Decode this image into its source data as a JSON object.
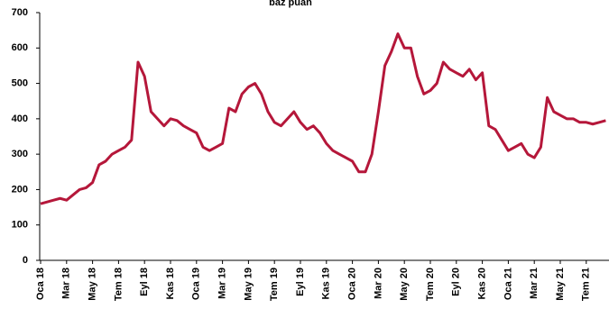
{
  "chart_data": {
    "type": "line",
    "title": "baz puan",
    "categories": [
      "Oca 18",
      null,
      null,
      null,
      "Mar 18",
      null,
      null,
      null,
      "May 18",
      null,
      null,
      null,
      "Tem 18",
      null,
      null,
      null,
      "Eyl 18",
      null,
      null,
      null,
      "Kas 18",
      null,
      null,
      null,
      "Oca 19",
      null,
      null,
      null,
      "Mar 19",
      null,
      null,
      null,
      "May 19",
      null,
      null,
      null,
      "Tem 19",
      null,
      null,
      null,
      "Eyl 19",
      null,
      null,
      null,
      "Kas 19",
      null,
      null,
      null,
      "Oca 20",
      null,
      null,
      null,
      "Mar 20",
      null,
      null,
      null,
      "May 20",
      null,
      null,
      null,
      "Tem 20",
      null,
      null,
      null,
      "Eyl 20",
      null,
      null,
      null,
      "Kas 20",
      null,
      null,
      null,
      "Oca 21",
      null,
      null,
      null,
      "Mar 21",
      null,
      null,
      null,
      "May 21",
      null,
      null,
      null,
      "Tem 21",
      null,
      null,
      null
    ],
    "series": [
      {
        "color": "#b5173a",
        "values": [
          160,
          165,
          170,
          175,
          170,
          185,
          200,
          205,
          220,
          270,
          280,
          300,
          310,
          320,
          340,
          560,
          520,
          420,
          400,
          380,
          400,
          395,
          380,
          370,
          360,
          320,
          310,
          320,
          330,
          430,
          420,
          470,
          490,
          500,
          470,
          420,
          390,
          380,
          400,
          420,
          390,
          370,
          380,
          360,
          330,
          310,
          300,
          290,
          280,
          250,
          250,
          300,
          420,
          550,
          590,
          640,
          600,
          600,
          520,
          470,
          480,
          500,
          560,
          540,
          530,
          520,
          540,
          510,
          530,
          380,
          370,
          340,
          310,
          320,
          330,
          300,
          290,
          320,
          460,
          420,
          410,
          400,
          400,
          390,
          390,
          385,
          390,
          395
        ]
      }
    ],
    "ylim": [
      0,
      700
    ],
    "yticks": [
      0,
      100,
      200,
      300,
      400,
      500,
      600,
      700
    ]
  }
}
